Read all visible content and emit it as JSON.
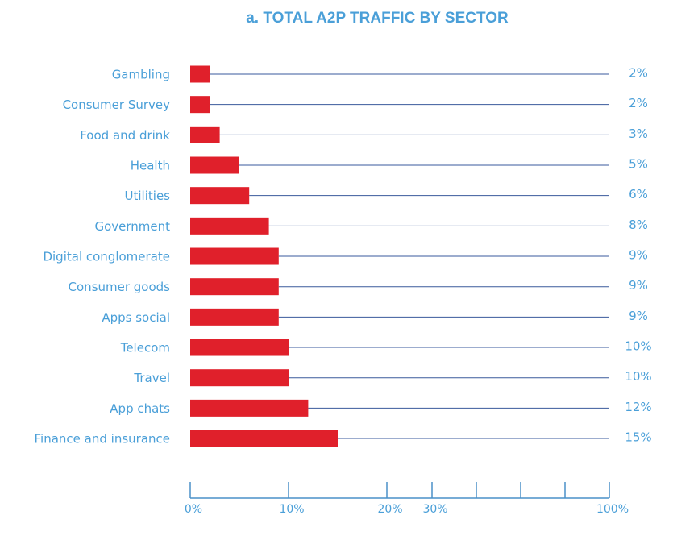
{
  "chart_data": {
    "type": "bar",
    "orientation": "horizontal",
    "title": "a. TOTAL A2P TRAFFIC BY SECTOR",
    "categories": [
      "Gambling",
      "Consumer Survey",
      "Food and drink",
      "Health",
      "Utilities",
      "Government",
      "Digital conglomerate",
      "Consumer goods",
      "Apps social",
      "Telecom",
      "Travel",
      "App chats",
      "Finance and insurance"
    ],
    "values": [
      2,
      2,
      3,
      5,
      6,
      8,
      9,
      9,
      9,
      10,
      10,
      12,
      15
    ],
    "value_labels": [
      "2%",
      "2%",
      "3%",
      "5%",
      "6%",
      "8%",
      "9%",
      "9%",
      "9%",
      "10%",
      "10%",
      "12%",
      "15%"
    ],
    "color": "#e0202b",
    "xlim": [
      0,
      100
    ],
    "xticks": [
      {
        "value": 0,
        "label": "0%"
      },
      {
        "value": 10,
        "label": "10%"
      },
      {
        "value": 20,
        "label": "20%"
      },
      {
        "value": 30,
        "label": "30%"
      },
      {
        "value": 47.5,
        "label": null
      },
      {
        "value": 65,
        "label": null
      },
      {
        "value": 82.5,
        "label": null
      },
      {
        "value": 100,
        "label": "100%"
      }
    ]
  }
}
